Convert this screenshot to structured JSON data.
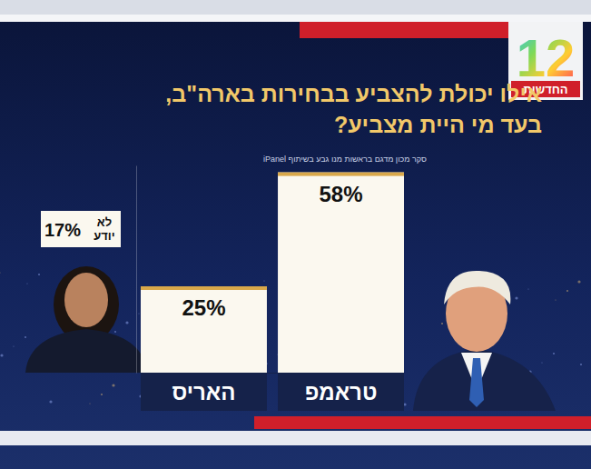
{
  "header": {
    "logo": "12",
    "channel": "החדשות"
  },
  "chart_data": {
    "type": "bar",
    "title": "אילו יכולת להצביע בבחירות בארה\"ב, בעד מי היית מצביע?",
    "subtitle": "סקר מכון מדגם בראשות מנו גבע בשיתוף iPanel",
    "categories": [
      "טראמפ",
      "האריס"
    ],
    "values": [
      58,
      25
    ],
    "value_labels": [
      "58%",
      "25%"
    ],
    "color": "#fbf8ef",
    "ylim": [
      0,
      60
    ],
    "yticks": [],
    "grid": false,
    "tick_labels": "x",
    "data_labels": true,
    "annotations": [
      {
        "text": "לא יודע",
        "value": 17,
        "label": "17%"
      }
    ]
  }
}
